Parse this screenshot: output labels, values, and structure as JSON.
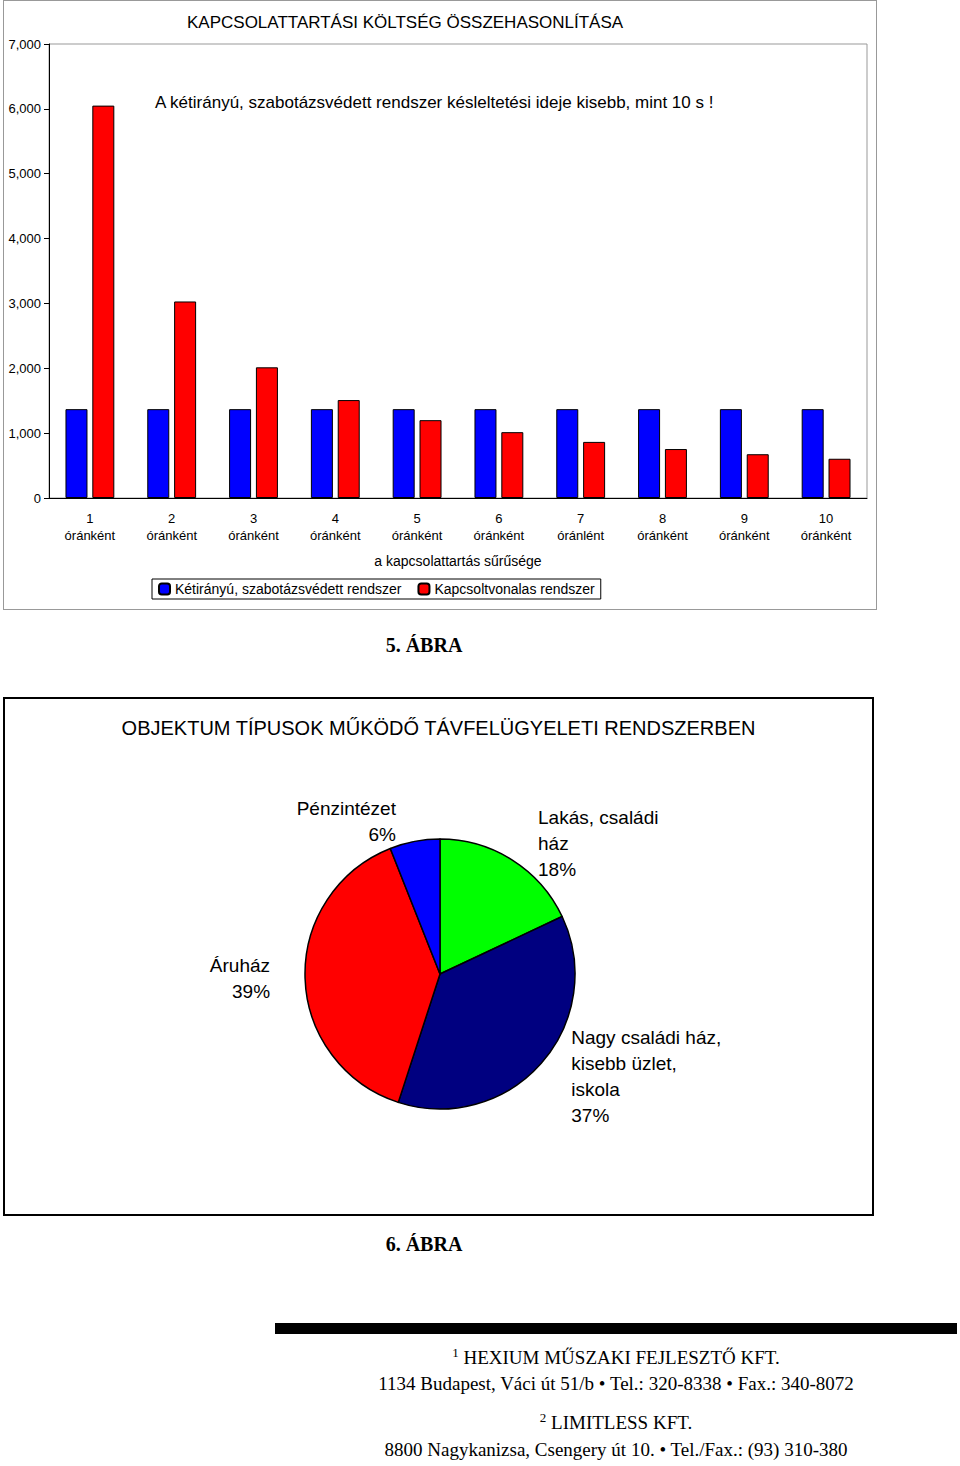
{
  "chart_data": [
    {
      "type": "bar",
      "title": "KAPCSOLATTARTÁSI KÖLTSÉG ÖSSZEHASONLÍTÁSA",
      "annotation": "A kétirányú, szabotázsvédett rendszer késleltetési ideje kisebb, mint 10 s !",
      "x_label": "a kapcsolattartás sűrűsége",
      "categories": [
        "1\nóránként",
        "2\nóránként",
        "3\nóránként",
        "4\nóránként",
        "5\nóránként",
        "6\nóránként",
        "7\nóránlént",
        "8\nóránként",
        "9\nóránként",
        "10\nóránként"
      ],
      "series": [
        {
          "name": "Kétirányú, szabotázsvédett rendszer",
          "color": "#0000ff",
          "values": [
            1370,
            1370,
            1370,
            1370,
            1370,
            1370,
            1370,
            1370,
            1370,
            1370
          ]
        },
        {
          "name": "Kapcsoltvonalas rendszer",
          "color": "#ff0000",
          "values": [
            6050,
            3030,
            2015,
            1510,
            1200,
            1015,
            865,
            755,
            675,
            605
          ]
        }
      ],
      "ylim": [
        0,
        7000
      ],
      "yticks": [
        0,
        1000,
        2000,
        3000,
        4000,
        5000,
        6000,
        7000
      ],
      "grid": false,
      "legend": "bottom"
    },
    {
      "type": "pie",
      "title": "OBJEKTUM TÍPUSOK MŰKÖDŐ TÁVFELÜGYELETI RENDSZERBEN",
      "categories": [
        "Lakás, családi\nház",
        "Nagy családi ház,\nkisebb üzlet,\niskola",
        "Áruház",
        "Pénzintézet"
      ],
      "values": [
        18,
        37,
        39,
        6
      ],
      "value_labels": [
        "18%",
        "37%",
        "39%",
        "6%"
      ],
      "colors": [
        "#00ff00",
        "#000080",
        "#ff0000",
        "#0000ff"
      ],
      "data_labels": true
    }
  ],
  "captions": [
    "5. ÁBRA",
    "6. ÁBRA"
  ],
  "footer": [
    {
      "number": 1,
      "name": "HEXIUM MŰSZAKI FEJLESZTŐ KFT.",
      "address": "1134 Budapest, Váci út 51/b • Tel.: 320-8338 • Fax.: 340-8072"
    },
    {
      "number": 2,
      "name": "LIMITLESS KFT.",
      "address": "8800 Nagykanizsa, Csengery út 10. • Tel./Fax.: (93) 310-380"
    }
  ]
}
